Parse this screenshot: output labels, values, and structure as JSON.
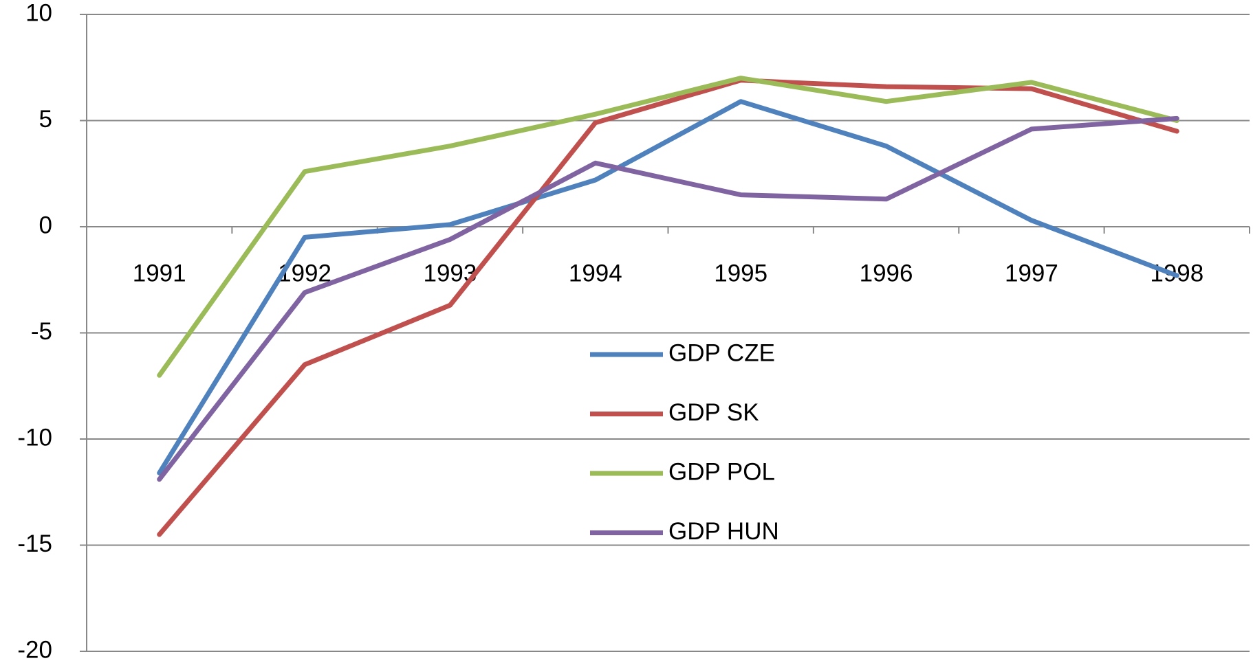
{
  "chart_data": {
    "type": "line",
    "categories": [
      "1991",
      "1992",
      "1993",
      "1994",
      "1995",
      "1996",
      "1997",
      "1998"
    ],
    "series": [
      {
        "name": "GDP CZE",
        "color": "#4f81bd",
        "values": [
          -11.6,
          -0.5,
          0.1,
          2.2,
          5.9,
          3.8,
          0.3,
          -2.3
        ]
      },
      {
        "name": "GDP SK",
        "color": "#c0504d",
        "values": [
          -14.5,
          -6.5,
          -3.7,
          4.9,
          6.9,
          6.6,
          6.5,
          4.5
        ]
      },
      {
        "name": "GDP POL",
        "color": "#9bbb59",
        "values": [
          -7.0,
          2.6,
          3.8,
          5.3,
          7.0,
          5.9,
          6.8,
          5.0
        ]
      },
      {
        "name": "GDP HUN",
        "color": "#8064a2",
        "values": [
          -11.9,
          -3.1,
          -0.6,
          3.0,
          1.5,
          1.3,
          4.6,
          5.1
        ]
      }
    ],
    "ylim": [
      -20,
      10
    ],
    "yticks": [
      -20,
      -15,
      -10,
      -5,
      0,
      5,
      10
    ],
    "grid": true
  }
}
